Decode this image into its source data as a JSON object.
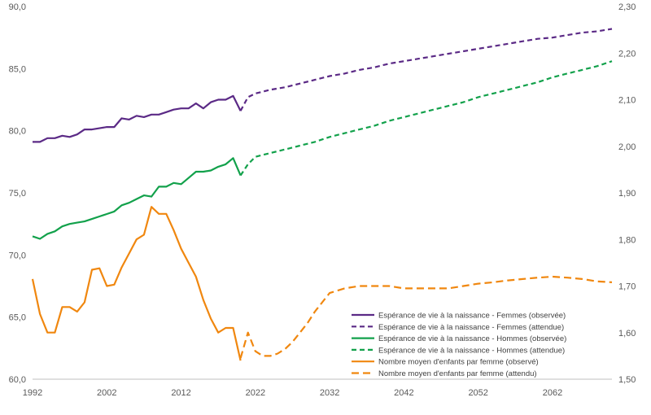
{
  "chart_data": {
    "type": "line",
    "x_ticks": [
      "1992",
      "2002",
      "2012",
      "2022",
      "2032",
      "2042",
      "2052",
      "2062"
    ],
    "y_left": {
      "min": 60,
      "max": 90,
      "ticks": [
        "60,0",
        "65,0",
        "70,0",
        "75,0",
        "80,0",
        "85,0",
        "90,0"
      ]
    },
    "y_right": {
      "min": 1.5,
      "max": 2.3,
      "ticks": [
        "1,50",
        "1,60",
        "1,70",
        "1,80",
        "1,90",
        "2,00",
        "2,10",
        "2,20",
        "2,30"
      ]
    },
    "x_range": [
      1992,
      2070
    ],
    "grid": false,
    "legend_position": "bottom-right",
    "series": [
      {
        "name": "Espérance de vie à la naissance - Femmes (observée)",
        "axis": "left",
        "color": "#5b2a86",
        "dashed": false,
        "points": [
          [
            1992,
            79.1
          ],
          [
            1993,
            79.1
          ],
          [
            1994,
            79.4
          ],
          [
            1995,
            79.4
          ],
          [
            1996,
            79.6
          ],
          [
            1997,
            79.5
          ],
          [
            1998,
            79.7
          ],
          [
            1999,
            80.1
          ],
          [
            2000,
            80.1
          ],
          [
            2001,
            80.2
          ],
          [
            2002,
            80.3
          ],
          [
            2003,
            80.3
          ],
          [
            2004,
            81.0
          ],
          [
            2005,
            80.9
          ],
          [
            2006,
            81.2
          ],
          [
            2007,
            81.1
          ],
          [
            2008,
            81.3
          ],
          [
            2009,
            81.3
          ],
          [
            2010,
            81.5
          ],
          [
            2011,
            81.7
          ],
          [
            2012,
            81.8
          ],
          [
            2013,
            81.8
          ],
          [
            2014,
            82.2
          ],
          [
            2015,
            81.8
          ],
          [
            2016,
            82.3
          ],
          [
            2017,
            82.5
          ],
          [
            2018,
            82.5
          ],
          [
            2019,
            82.8
          ],
          [
            2020,
            81.6
          ]
        ]
      },
      {
        "name": "Espérance de vie à la naissance - Femmes (attendue)",
        "axis": "left",
        "color": "#5b2a86",
        "dashed": true,
        "points": [
          [
            2020,
            81.6
          ],
          [
            2021,
            82.7
          ],
          [
            2022,
            83.0
          ],
          [
            2024,
            83.3
          ],
          [
            2026,
            83.5
          ],
          [
            2028,
            83.8
          ],
          [
            2030,
            84.1
          ],
          [
            2032,
            84.4
          ],
          [
            2034,
            84.6
          ],
          [
            2036,
            84.9
          ],
          [
            2038,
            85.1
          ],
          [
            2040,
            85.4
          ],
          [
            2042,
            85.6
          ],
          [
            2044,
            85.8
          ],
          [
            2046,
            86.0
          ],
          [
            2048,
            86.2
          ],
          [
            2050,
            86.4
          ],
          [
            2052,
            86.6
          ],
          [
            2054,
            86.8
          ],
          [
            2056,
            87.0
          ],
          [
            2058,
            87.2
          ],
          [
            2060,
            87.4
          ],
          [
            2062,
            87.5
          ],
          [
            2064,
            87.7
          ],
          [
            2066,
            87.9
          ],
          [
            2068,
            88.0
          ],
          [
            2070,
            88.2
          ]
        ]
      },
      {
        "name": "Espérance de vie à la naissance - Hommes (observée)",
        "axis": "left",
        "color": "#12a14b",
        "dashed": false,
        "points": [
          [
            1992,
            71.5
          ],
          [
            1993,
            71.3
          ],
          [
            1994,
            71.7
          ],
          [
            1995,
            71.9
          ],
          [
            1996,
            72.3
          ],
          [
            1997,
            72.5
          ],
          [
            1998,
            72.6
          ],
          [
            1999,
            72.7
          ],
          [
            2000,
            72.9
          ],
          [
            2001,
            73.1
          ],
          [
            2002,
            73.3
          ],
          [
            2003,
            73.5
          ],
          [
            2004,
            74.0
          ],
          [
            2005,
            74.2
          ],
          [
            2006,
            74.5
          ],
          [
            2007,
            74.8
          ],
          [
            2008,
            74.7
          ],
          [
            2009,
            75.5
          ],
          [
            2010,
            75.5
          ],
          [
            2011,
            75.8
          ],
          [
            2012,
            75.7
          ],
          [
            2013,
            76.2
          ],
          [
            2014,
            76.7
          ],
          [
            2015,
            76.7
          ],
          [
            2016,
            76.8
          ],
          [
            2017,
            77.1
          ],
          [
            2018,
            77.3
          ],
          [
            2019,
            77.8
          ],
          [
            2020,
            76.4
          ]
        ]
      },
      {
        "name": "Espérance de vie à la naissance - Hommes (attendue)",
        "axis": "left",
        "color": "#12a14b",
        "dashed": true,
        "points": [
          [
            2020,
            76.4
          ],
          [
            2021,
            77.3
          ],
          [
            2022,
            77.9
          ],
          [
            2024,
            78.2
          ],
          [
            2026,
            78.5
          ],
          [
            2028,
            78.8
          ],
          [
            2030,
            79.1
          ],
          [
            2032,
            79.5
          ],
          [
            2034,
            79.8
          ],
          [
            2036,
            80.1
          ],
          [
            2038,
            80.4
          ],
          [
            2040,
            80.8
          ],
          [
            2042,
            81.1
          ],
          [
            2044,
            81.4
          ],
          [
            2046,
            81.7
          ],
          [
            2048,
            82.0
          ],
          [
            2050,
            82.3
          ],
          [
            2052,
            82.7
          ],
          [
            2054,
            83.0
          ],
          [
            2056,
            83.3
          ],
          [
            2058,
            83.6
          ],
          [
            2060,
            83.9
          ],
          [
            2062,
            84.3
          ],
          [
            2064,
            84.6
          ],
          [
            2066,
            84.9
          ],
          [
            2068,
            85.2
          ],
          [
            2070,
            85.6
          ]
        ]
      },
      {
        "name": "Nombre moyen d'enfants par femme (observé)",
        "axis": "right",
        "color": "#f0870f",
        "dashed": false,
        "points": [
          [
            1992,
            1.715
          ],
          [
            1993,
            1.64
          ],
          [
            1994,
            1.6
          ],
          [
            1995,
            1.6
          ],
          [
            1996,
            1.655
          ],
          [
            1997,
            1.655
          ],
          [
            1998,
            1.645
          ],
          [
            1999,
            1.665
          ],
          [
            2000,
            1.735
          ],
          [
            2001,
            1.738
          ],
          [
            2002,
            1.7
          ],
          [
            2003,
            1.703
          ],
          [
            2004,
            1.74
          ],
          [
            2005,
            1.77
          ],
          [
            2006,
            1.8
          ],
          [
            2007,
            1.81
          ],
          [
            2008,
            1.87
          ],
          [
            2009,
            1.855
          ],
          [
            2010,
            1.855
          ],
          [
            2011,
            1.82
          ],
          [
            2012,
            1.78
          ],
          [
            2013,
            1.75
          ],
          [
            2014,
            1.72
          ],
          [
            2015,
            1.67
          ],
          [
            2016,
            1.63
          ],
          [
            2017,
            1.6
          ],
          [
            2018,
            1.61
          ],
          [
            2019,
            1.61
          ],
          [
            2020,
            1.54
          ]
        ]
      },
      {
        "name": "Nombre moyen d'enfants par femme (attendu)",
        "axis": "right",
        "color": "#f0870f",
        "dashed": true,
        "points": [
          [
            2020,
            1.545
          ],
          [
            2021,
            1.6
          ],
          [
            2022,
            1.56
          ],
          [
            2023,
            1.55
          ],
          [
            2024,
            1.55
          ],
          [
            2025,
            1.555
          ],
          [
            2026,
            1.565
          ],
          [
            2027,
            1.58
          ],
          [
            2028,
            1.6
          ],
          [
            2029,
            1.62
          ],
          [
            2030,
            1.645
          ],
          [
            2031,
            1.665
          ],
          [
            2032,
            1.685
          ],
          [
            2034,
            1.695
          ],
          [
            2036,
            1.7
          ],
          [
            2038,
            1.7
          ],
          [
            2040,
            1.7
          ],
          [
            2042,
            1.695
          ],
          [
            2044,
            1.695
          ],
          [
            2046,
            1.695
          ],
          [
            2048,
            1.695
          ],
          [
            2050,
            1.7
          ],
          [
            2052,
            1.705
          ],
          [
            2054,
            1.708
          ],
          [
            2056,
            1.712
          ],
          [
            2058,
            1.715
          ],
          [
            2060,
            1.718
          ],
          [
            2062,
            1.72
          ],
          [
            2064,
            1.718
          ],
          [
            2066,
            1.715
          ],
          [
            2068,
            1.71
          ],
          [
            2070,
            1.708
          ]
        ]
      }
    ]
  }
}
